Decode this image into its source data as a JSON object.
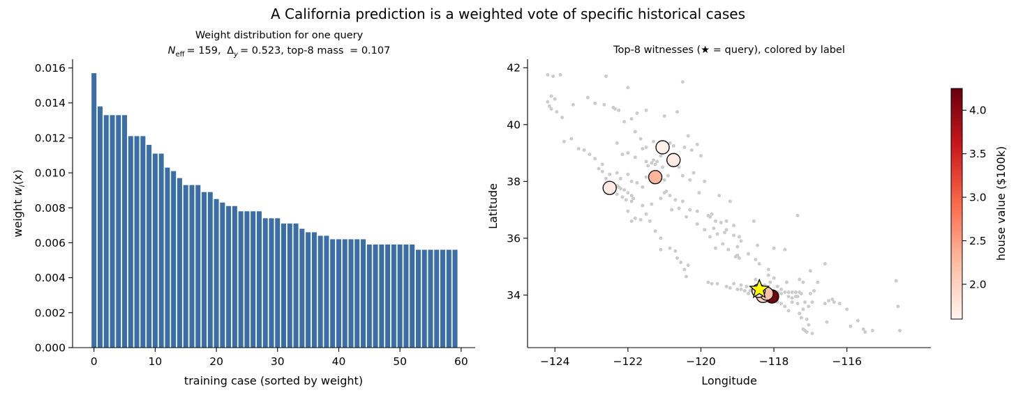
{
  "figure": {
    "title": "A California prediction is a weighted vote of specific historical cases"
  },
  "chart_data": [
    {
      "type": "bar",
      "title": "Weight distribution for one query",
      "subtitle": {
        "neff_symbol": "N",
        "neff_sub": "eff",
        "neff_value": "= 159,",
        "delta_symbol": "Δ",
        "delta_sub": "y",
        "delta_value": "= 0.523, top-8 mass",
        "mass_value": "= 0.107"
      },
      "xlabel": "training case (sorted by weight)",
      "ylabel_main": "weight ",
      "ylabel_symbol": "w",
      "ylabel_sub": "i",
      "ylabel_arg": "(x)",
      "xlim": [
        -3.5,
        62.3
      ],
      "ylim": [
        0,
        0.0165
      ],
      "xticks": [
        0,
        10,
        20,
        30,
        40,
        50,
        60
      ],
      "yticks": [
        0.0,
        0.002,
        0.004,
        0.006,
        0.008,
        0.01,
        0.012,
        0.014,
        0.016
      ],
      "ytick_labels": [
        "0.000",
        "0.002",
        "0.004",
        "0.006",
        "0.008",
        "0.010",
        "0.012",
        "0.014",
        "0.016"
      ],
      "bar_color": "#3a6ea5",
      "x": [
        0,
        1,
        2,
        3,
        4,
        5,
        6,
        7,
        8,
        9,
        10,
        11,
        12,
        13,
        14,
        15,
        16,
        17,
        18,
        19,
        20,
        21,
        22,
        23,
        24,
        25,
        26,
        27,
        28,
        29,
        30,
        31,
        32,
        33,
        34,
        35,
        36,
        37,
        38,
        39,
        40,
        41,
        42,
        43,
        44,
        45,
        46,
        47,
        48,
        49,
        50,
        51,
        52,
        53,
        54,
        55,
        56,
        57,
        58,
        59
      ],
      "values": [
        0.0157,
        0.0138,
        0.0133,
        0.0133,
        0.0133,
        0.0133,
        0.0121,
        0.0121,
        0.0121,
        0.0116,
        0.0111,
        0.0111,
        0.0103,
        0.0101,
        0.0097,
        0.0093,
        0.0093,
        0.0093,
        0.0089,
        0.0089,
        0.0085,
        0.0083,
        0.0081,
        0.0081,
        0.0078,
        0.0078,
        0.0078,
        0.0078,
        0.0074,
        0.0074,
        0.0074,
        0.0071,
        0.0071,
        0.0071,
        0.0068,
        0.0066,
        0.0066,
        0.0064,
        0.0064,
        0.0062,
        0.0062,
        0.0062,
        0.0062,
        0.0062,
        0.0062,
        0.0059,
        0.0059,
        0.0059,
        0.0059,
        0.0059,
        0.0059,
        0.0059,
        0.0059,
        0.0056,
        0.0056,
        0.0056,
        0.0056,
        0.0056,
        0.0056,
        0.0056
      ]
    },
    {
      "type": "scatter",
      "title": "Top-8 witnesses (★ = query), colored by label",
      "xlabel": "Longitude",
      "ylabel": "Latitude",
      "xlim": [
        -124.75,
        -113.7
      ],
      "ylim": [
        32.15,
        42.3
      ],
      "xticks": [
        -124,
        -122,
        -120,
        -118,
        -116
      ],
      "xtick_labels": [
        "−124",
        "−122",
        "−120",
        "−118",
        "−116"
      ],
      "yticks": [
        34,
        36,
        38,
        40,
        42
      ],
      "ytick_labels": [
        "34",
        "36",
        "38",
        "40",
        "42"
      ],
      "background_color": "#cccccc",
      "background_points": [
        [
          -124.2,
          41.75
        ],
        [
          -124.05,
          41.7
        ],
        [
          -123.85,
          41.75
        ],
        [
          -124.1,
          41.0
        ],
        [
          -124.2,
          40.8
        ],
        [
          -124.15,
          40.65
        ],
        [
          -124.1,
          40.55
        ],
        [
          -124.0,
          40.9
        ],
        [
          -123.95,
          40.45
        ],
        [
          -123.8,
          40.25
        ],
        [
          -123.5,
          40.7
        ],
        [
          -123.55,
          39.5
        ],
        [
          -123.75,
          39.4
        ],
        [
          -123.35,
          39.15
        ],
        [
          -123.2,
          39.1
        ],
        [
          -123.05,
          38.95
        ],
        [
          -122.9,
          38.8
        ],
        [
          -122.7,
          38.6
        ],
        [
          -122.8,
          38.45
        ],
        [
          -122.7,
          38.35
        ],
        [
          -122.5,
          38.25
        ],
        [
          -122.3,
          38.3
        ],
        [
          -122.2,
          38.1
        ],
        [
          -122.4,
          37.9
        ],
        [
          -122.3,
          37.85
        ],
        [
          -122.25,
          37.8
        ],
        [
          -122.2,
          37.75
        ],
        [
          -122.1,
          37.7
        ],
        [
          -122.0,
          37.6
        ],
        [
          -121.9,
          37.5
        ],
        [
          -121.85,
          37.4
        ],
        [
          -121.9,
          37.3
        ],
        [
          -122.05,
          37.35
        ],
        [
          -122.15,
          37.45
        ],
        [
          -122.3,
          37.55
        ],
        [
          -122.4,
          37.7
        ],
        [
          -122.45,
          37.65
        ],
        [
          -122.0,
          36.95
        ],
        [
          -121.9,
          36.6
        ],
        [
          -121.8,
          36.7
        ],
        [
          -121.65,
          36.65
        ],
        [
          -121.5,
          36.85
        ],
        [
          -121.4,
          36.6
        ],
        [
          -122.6,
          38.1
        ],
        [
          -122.0,
          38.25
        ],
        [
          -121.9,
          38.0
        ],
        [
          -121.75,
          37.95
        ],
        [
          -121.6,
          37.8
        ],
        [
          -121.3,
          37.95
        ],
        [
          -121.25,
          38.6
        ],
        [
          -121.35,
          38.65
        ],
        [
          -121.45,
          38.55
        ],
        [
          -121.5,
          38.7
        ],
        [
          -121.3,
          38.75
        ],
        [
          -121.2,
          38.7
        ],
        [
          -121.1,
          38.9
        ],
        [
          -121.6,
          39.15
        ],
        [
          -121.65,
          39.5
        ],
        [
          -121.8,
          39.75
        ],
        [
          -122.1,
          40.1
        ],
        [
          -122.4,
          40.6
        ],
        [
          -122.25,
          40.5
        ],
        [
          -122.35,
          40.55
        ],
        [
          -122.0,
          41.3
        ],
        [
          -122.6,
          41.7
        ],
        [
          -121.0,
          40.3
        ],
        [
          -120.5,
          41.5
        ],
        [
          -120.6,
          38.5
        ],
        [
          -120.9,
          38.2
        ],
        [
          -120.95,
          37.65
        ],
        [
          -121.0,
          37.6
        ],
        [
          -120.85,
          37.5
        ],
        [
          -120.5,
          37.3
        ],
        [
          -120.3,
          37.0
        ],
        [
          -120.1,
          36.95
        ],
        [
          -119.8,
          36.8
        ],
        [
          -119.75,
          36.75
        ],
        [
          -119.7,
          36.85
        ],
        [
          -119.65,
          36.35
        ],
        [
          -119.3,
          36.3
        ],
        [
          -119.35,
          36.2
        ],
        [
          -119.0,
          35.4
        ],
        [
          -119.05,
          35.35
        ],
        [
          -118.95,
          35.3
        ],
        [
          -119.25,
          35.6
        ],
        [
          -118.4,
          35.1
        ],
        [
          -118.15,
          34.7
        ],
        [
          -118.0,
          34.6
        ],
        [
          -117.3,
          34.55
        ],
        [
          -117.0,
          34.85
        ],
        [
          -116.9,
          34.15
        ],
        [
          -116.8,
          34.45
        ],
        [
          -116.5,
          33.8
        ],
        [
          -116.35,
          33.75
        ],
        [
          -116.2,
          33.7
        ],
        [
          -115.55,
          32.8
        ],
        [
          -115.5,
          32.7
        ],
        [
          -115.3,
          32.75
        ],
        [
          -114.6,
          33.6
        ],
        [
          -114.55,
          32.75
        ],
        [
          -114.65,
          34.5
        ],
        [
          -115.9,
          32.9
        ],
        [
          -116.95,
          32.65
        ],
        [
          -117.1,
          32.7
        ],
        [
          -117.15,
          32.75
        ],
        [
          -117.2,
          32.8
        ],
        [
          -117.05,
          32.95
        ],
        [
          -117.1,
          33.15
        ],
        [
          -117.25,
          33.2
        ],
        [
          -117.3,
          33.35
        ],
        [
          -117.6,
          33.45
        ],
        [
          -117.7,
          33.6
        ],
        [
          -117.8,
          33.7
        ],
        [
          -117.9,
          33.75
        ],
        [
          -117.95,
          33.85
        ],
        [
          -118.1,
          33.85
        ],
        [
          -118.2,
          33.8
        ],
        [
          -118.3,
          33.9
        ],
        [
          -118.35,
          34.0
        ],
        [
          -118.4,
          34.05
        ],
        [
          -118.25,
          34.05
        ],
        [
          -118.2,
          34.1
        ],
        [
          -118.1,
          34.1
        ],
        [
          -118.0,
          34.05
        ],
        [
          -117.9,
          34.1
        ],
        [
          -117.8,
          34.05
        ],
        [
          -117.7,
          34.1
        ],
        [
          -117.6,
          34.1
        ],
        [
          -117.5,
          34.1
        ],
        [
          -117.4,
          34.1
        ],
        [
          -117.3,
          34.1
        ],
        [
          -117.25,
          34.05
        ],
        [
          -117.35,
          33.95
        ],
        [
          -117.4,
          33.95
        ],
        [
          -117.5,
          33.9
        ],
        [
          -118.45,
          34.2
        ],
        [
          -118.5,
          34.25
        ],
        [
          -118.55,
          34.2
        ],
        [
          -118.6,
          34.2
        ],
        [
          -118.65,
          34.15
        ],
        [
          -118.8,
          34.15
        ],
        [
          -118.9,
          34.2
        ],
        [
          -119.0,
          34.2
        ],
        [
          -119.2,
          34.25
        ],
        [
          -119.3,
          34.3
        ],
        [
          -119.7,
          34.4
        ],
        [
          -119.8,
          34.45
        ],
        [
          -120.4,
          34.65
        ],
        [
          -120.45,
          34.9
        ],
        [
          -120.55,
          35.15
        ],
        [
          -120.65,
          35.3
        ],
        [
          -120.7,
          35.55
        ],
        [
          -121.1,
          35.6
        ],
        [
          -118.7,
          34.05
        ],
        [
          -118.75,
          34.3
        ],
        [
          -118.9,
          34.35
        ],
        [
          -119.1,
          34.4
        ],
        [
          -118.15,
          34.9
        ],
        [
          -118.5,
          34.55
        ],
        [
          -116.55,
          33.05
        ],
        [
          -116.0,
          33.5
        ],
        [
          -115.7,
          33.1
        ],
        [
          -117.65,
          34.45
        ],
        [
          -117.2,
          34.45
        ],
        [
          -116.6,
          35.1
        ],
        [
          -117.7,
          35.6
        ],
        [
          -118.0,
          35.65
        ],
        [
          -118.45,
          35.75
        ],
        [
          -117.35,
          36.8
        ],
        [
          -119.2,
          37.3
        ],
        [
          -119.5,
          37.5
        ],
        [
          -119.9,
          38.0
        ],
        [
          -120.2,
          38.3
        ],
        [
          -120.3,
          38.05
        ],
        [
          -120.05,
          37.6
        ],
        [
          -119.6,
          36.6
        ],
        [
          -119.1,
          36.1
        ],
        [
          -118.95,
          36.05
        ],
        [
          -119.4,
          35.8
        ],
        [
          -119.6,
          35.65
        ],
        [
          -120.7,
          37.35
        ],
        [
          -120.5,
          38.2
        ],
        [
          -121.0,
          38.05
        ],
        [
          -122.15,
          38.95
        ],
        [
          -122.3,
          39.35
        ],
        [
          -122.0,
          39.0
        ],
        [
          -121.8,
          38.85
        ],
        [
          -121.5,
          38.15
        ],
        [
          -121.2,
          38.35
        ],
        [
          -120.75,
          39.25
        ],
        [
          -120.45,
          39.2
        ],
        [
          -120.25,
          39.1
        ],
        [
          -120.0,
          38.9
        ],
        [
          -120.1,
          39.3
        ],
        [
          -120.35,
          39.6
        ],
        [
          -121.5,
          40.5
        ],
        [
          -121.75,
          40.4
        ],
        [
          -121.9,
          40.2
        ],
        [
          -120.65,
          40.45
        ],
        [
          -122.65,
          40.7
        ],
        [
          -122.9,
          40.75
        ],
        [
          -123.1,
          40.95
        ],
        [
          -121.5,
          39.2
        ],
        [
          -121.3,
          39.4
        ],
        [
          -121.1,
          39.05
        ],
        [
          -120.85,
          39.35
        ],
        [
          -121.05,
          38.5
        ],
        [
          -121.25,
          38.25
        ],
        [
          -121.35,
          37.2
        ],
        [
          -121.6,
          37.15
        ],
        [
          -121.1,
          37.4
        ],
        [
          -120.8,
          37.0
        ],
        [
          -120.6,
          37.05
        ],
        [
          -120.4,
          36.75
        ],
        [
          -120.1,
          36.5
        ],
        [
          -119.9,
          36.3
        ],
        [
          -119.75,
          36.05
        ],
        [
          -119.55,
          36.15
        ],
        [
          -119.45,
          36.55
        ],
        [
          -119.3,
          36.6
        ],
        [
          -119.1,
          36.45
        ],
        [
          -118.9,
          35.9
        ],
        [
          -119.0,
          35.7
        ],
        [
          -118.7,
          35.45
        ],
        [
          -118.5,
          35.25
        ],
        [
          -118.55,
          36.6
        ],
        [
          -121.25,
          36.25
        ],
        [
          -121.1,
          36.0
        ],
        [
          -120.85,
          35.65
        ],
        [
          -120.35,
          35.05
        ],
        [
          -119.55,
          34.4
        ],
        [
          -118.25,
          34.35
        ],
        [
          -118.1,
          34.45
        ],
        [
          -117.9,
          34.3
        ],
        [
          -117.8,
          34.2
        ],
        [
          -117.0,
          34.05
        ],
        [
          -116.95,
          33.75
        ],
        [
          -117.05,
          33.6
        ],
        [
          -117.2,
          33.5
        ],
        [
          -116.6,
          33.7
        ],
        [
          -116.4,
          33.85
        ],
        [
          -117.6,
          33.95
        ],
        [
          -117.15,
          33.75
        ],
        [
          -117.35,
          33.7
        ],
        [
          -117.5,
          33.75
        ]
      ],
      "colorbar": {
        "label": "house value ($100k)",
        "min": 1.6,
        "max": 4.25,
        "ticks": [
          2.0,
          2.5,
          3.0,
          3.5,
          4.0
        ],
        "tick_labels": [
          "2.0",
          "2.5",
          "3.0",
          "3.5",
          "4.0"
        ],
        "colormap": "Reds",
        "stops": [
          "#fff5f0",
          "#fcbba1",
          "#fb6a4a",
          "#cb181d",
          "#67000d"
        ]
      },
      "witnesses": [
        {
          "lon": -121.05,
          "lat": 39.2,
          "value": 1.65
        },
        {
          "lon": -120.75,
          "lat": 38.75,
          "value": 1.7
        },
        {
          "lon": -121.25,
          "lat": 38.15,
          "value": 2.3
        },
        {
          "lon": -122.5,
          "lat": 37.77,
          "value": 1.72
        },
        {
          "lon": -118.3,
          "lat": 33.97,
          "value": 2.0
        },
        {
          "lon": -118.05,
          "lat": 33.95,
          "value": 4.2
        },
        {
          "lon": -118.2,
          "lat": 34.05,
          "value": 2.2
        },
        {
          "lon": -118.42,
          "lat": 34.15,
          "value": 1.85
        }
      ],
      "query": {
        "lon": -118.4,
        "lat": 34.2,
        "color": "#ffff00"
      }
    }
  ]
}
